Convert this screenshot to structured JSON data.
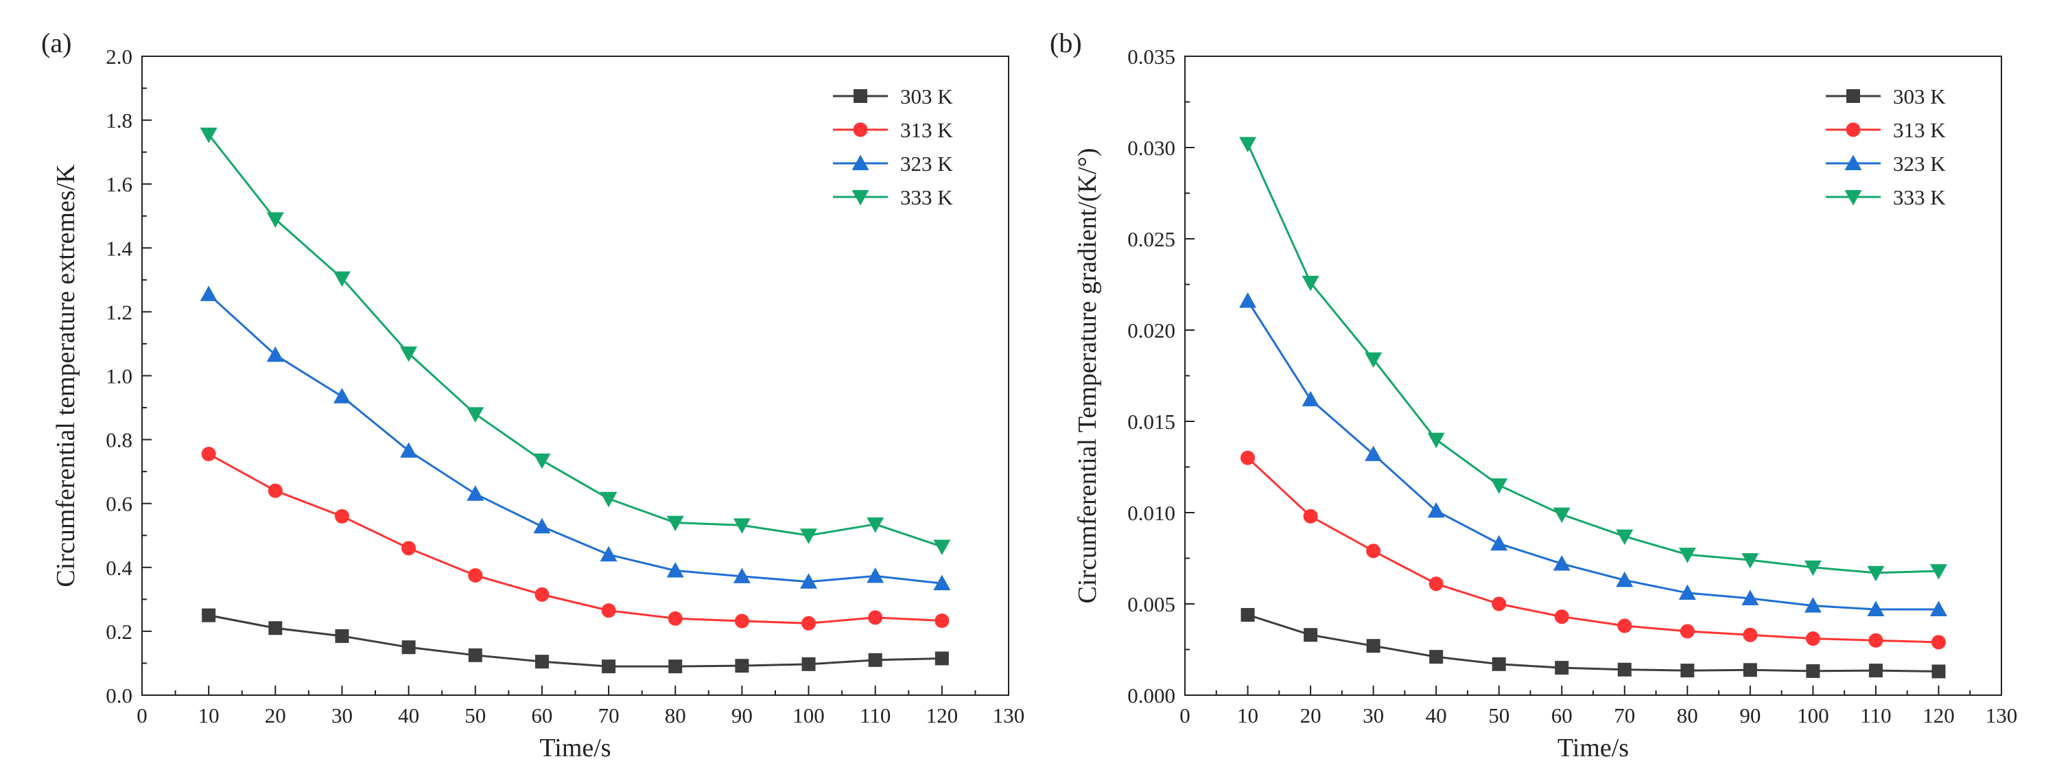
{
  "figure": {
    "colors": {
      "303 K": "#3d3d3d",
      "313 K": "#ff3333",
      "323 K": "#1f6fd4",
      "333 K": "#13a86a"
    },
    "markers": {
      "303 K": "square",
      "313 K": "circle",
      "323 K": "triangle-up",
      "333 K": "triangle-down"
    }
  },
  "chart_data": [
    {
      "type": "line",
      "panel_label": "(a)",
      "xlabel": "Time/s",
      "ylabel": "Circumferential temperature extremes/K",
      "xlim": [
        0,
        130
      ],
      "ylim": [
        0.0,
        2.0
      ],
      "xticks": [
        "0",
        "10",
        "20",
        "30",
        "40",
        "50",
        "60",
        "70",
        "80",
        "90",
        "100",
        "110",
        "120",
        "130"
      ],
      "yticks": [
        "0.0",
        "0.2",
        "0.4",
        "0.6",
        "0.8",
        "1.0",
        "1.2",
        "1.4",
        "1.6",
        "1.8",
        "2.0"
      ],
      "grid": false,
      "legend_position": "top-right",
      "x": [
        10,
        20,
        30,
        40,
        50,
        60,
        70,
        80,
        90,
        100,
        110,
        120
      ],
      "series": [
        {
          "name": "303 K",
          "values": [
            0.25,
            0.21,
            0.185,
            0.15,
            0.125,
            0.105,
            0.09,
            0.09,
            0.092,
            0.097,
            0.11,
            0.115
          ]
        },
        {
          "name": "313 K",
          "values": [
            0.755,
            0.64,
            0.56,
            0.46,
            0.375,
            0.315,
            0.265,
            0.24,
            0.232,
            0.225,
            0.243,
            0.233
          ]
        },
        {
          "name": "323 K",
          "values": [
            1.255,
            1.065,
            0.935,
            0.765,
            0.63,
            0.528,
            0.44,
            0.39,
            0.372,
            0.355,
            0.373,
            0.35
          ]
        },
        {
          "name": "333 K",
          "values": [
            1.755,
            1.49,
            1.305,
            1.07,
            0.88,
            0.735,
            0.615,
            0.54,
            0.532,
            0.5,
            0.535,
            0.465
          ]
        }
      ]
    },
    {
      "type": "line",
      "panel_label": "(b)",
      "xlabel": "Time/s",
      "ylabel": "Circumferential Temperature gradient/(K/°)",
      "xlim": [
        0,
        130
      ],
      "ylim": [
        0.0,
        0.035
      ],
      "xticks": [
        "0",
        "10",
        "20",
        "30",
        "40",
        "50",
        "60",
        "70",
        "80",
        "90",
        "100",
        "110",
        "120",
        "130"
      ],
      "yticks": [
        "0.000",
        "0.005",
        "0.010",
        "0.015",
        "0.020",
        "0.025",
        "0.030",
        "0.035"
      ],
      "grid": false,
      "legend_position": "top-right",
      "x": [
        10,
        20,
        30,
        40,
        50,
        60,
        70,
        80,
        90,
        100,
        110,
        120
      ],
      "series": [
        {
          "name": "303 K",
          "values": [
            0.0044,
            0.0033,
            0.0027,
            0.0021,
            0.0017,
            0.0015,
            0.0014,
            0.00135,
            0.00138,
            0.00132,
            0.00135,
            0.0013
          ]
        },
        {
          "name": "313 K",
          "values": [
            0.013,
            0.0098,
            0.0079,
            0.0061,
            0.005,
            0.0043,
            0.0038,
            0.0035,
            0.0033,
            0.0031,
            0.003,
            0.0029
          ]
        },
        {
          "name": "323 K",
          "values": [
            0.0216,
            0.0162,
            0.0132,
            0.0101,
            0.0083,
            0.0072,
            0.0063,
            0.0056,
            0.0053,
            0.0049,
            0.0047,
            0.0047
          ]
        },
        {
          "name": "333 K",
          "values": [
            0.0302,
            0.0226,
            0.0184,
            0.014,
            0.0115,
            0.0099,
            0.0087,
            0.0077,
            0.0074,
            0.007,
            0.0067,
            0.0068
          ]
        }
      ]
    }
  ]
}
